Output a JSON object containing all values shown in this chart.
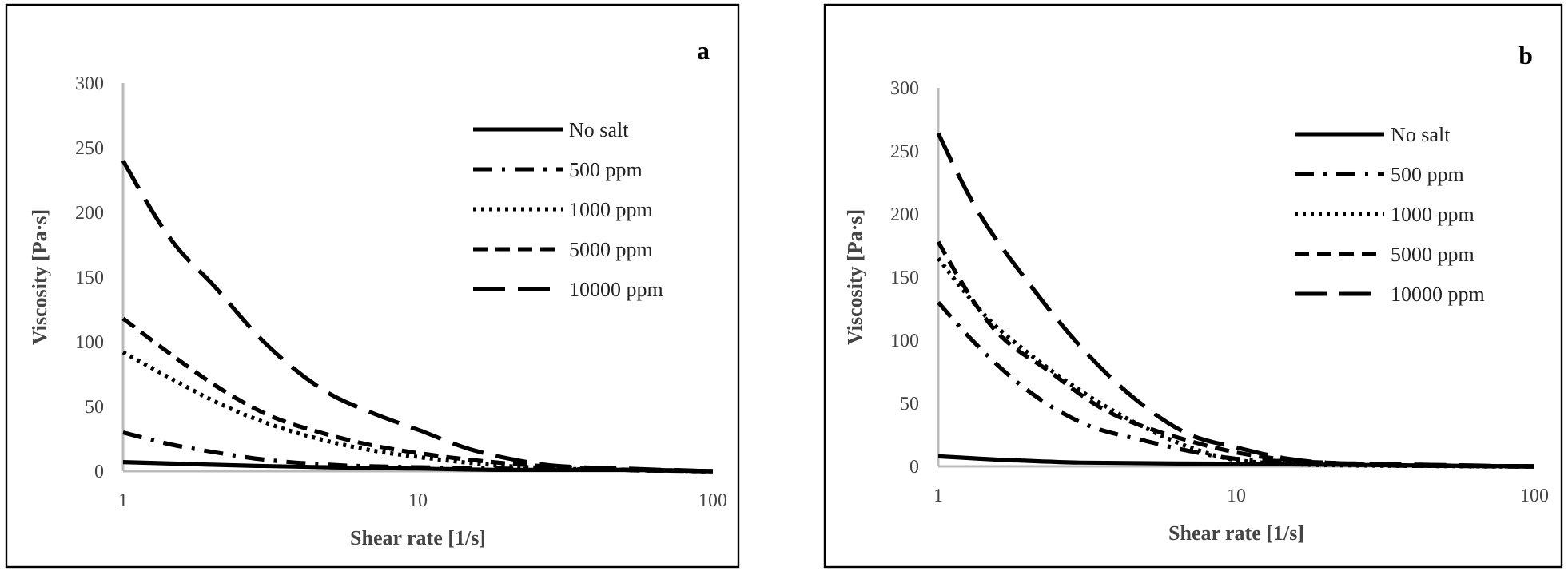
{
  "chart_data": [
    {
      "type": "line",
      "title": "a",
      "xlabel": "Shear rate [1/s]",
      "ylabel": "Viscosity [Pa·s]",
      "log": "x",
      "xlim": [
        1,
        100
      ],
      "xticks": [
        1,
        10,
        100
      ],
      "ylim": [
        0,
        300
      ],
      "yticks": [
        0,
        50,
        100,
        150,
        200,
        250,
        300
      ],
      "legend": "top right",
      "series": [
        {
          "name": "No salt",
          "color": "#000000",
          "line_style": "solid",
          "x": [
            1,
            2,
            3,
            5,
            10,
            20,
            50,
            100
          ],
          "values": [
            7,
            5,
            4,
            3,
            2,
            1,
            1,
            0
          ]
        },
        {
          "name": "500 ppm",
          "color": "#000000",
          "line_style": "dashdot",
          "x": [
            1,
            1.5,
            2,
            3,
            5,
            10,
            20,
            50,
            100
          ],
          "values": [
            30,
            20,
            15,
            9,
            5,
            3,
            2,
            1,
            0
          ]
        },
        {
          "name": "1000 ppm",
          "color": "#000000",
          "line_style": "dotted",
          "x": [
            1,
            1.5,
            2,
            3,
            5,
            7,
            10,
            20,
            30,
            50,
            100
          ],
          "values": [
            92,
            70,
            55,
            38,
            23,
            16,
            11,
            4,
            2,
            1,
            0
          ]
        },
        {
          "name": "5000 ppm",
          "color": "#000000",
          "line_style": "dashed",
          "x": [
            1,
            1.5,
            2,
            3,
            5,
            7,
            10,
            20,
            30,
            50,
            100
          ],
          "values": [
            118,
            88,
            68,
            45,
            28,
            20,
            14,
            6,
            3,
            1,
            0
          ]
        },
        {
          "name": "10000 ppm",
          "color": "#000000",
          "line_style": "longdash",
          "x": [
            1,
            1.5,
            2,
            3,
            5,
            7,
            10,
            15,
            20,
            30,
            50,
            100
          ],
          "values": [
            240,
            175,
            145,
            100,
            60,
            45,
            32,
            17,
            10,
            4,
            2,
            0
          ]
        }
      ]
    },
    {
      "type": "line",
      "title": "b",
      "xlabel": "Shear rate [1/s]",
      "ylabel": "Viscosity [Pa·s]",
      "log": "x",
      "xlim": [
        1,
        100
      ],
      "xticks": [
        1,
        10,
        100
      ],
      "ylim": [
        0,
        300
      ],
      "yticks": [
        0,
        50,
        100,
        150,
        200,
        250,
        300
      ],
      "legend": "top right",
      "series": [
        {
          "name": "No salt",
          "color": "#000000",
          "line_style": "solid",
          "x": [
            1,
            3,
            10,
            100
          ],
          "values": [
            8,
            3,
            2,
            0
          ]
        },
        {
          "name": "500 ppm",
          "color": "#000000",
          "line_style": "dashdot",
          "x": [
            1,
            1.3,
            2,
            3,
            5,
            7,
            10,
            20,
            30,
            100
          ],
          "values": [
            130,
            100,
            60,
            35,
            20,
            12,
            6,
            3,
            1,
            0
          ]
        },
        {
          "name": "1000 ppm",
          "color": "#000000",
          "line_style": "dotted",
          "x": [
            1,
            1.5,
            2,
            3,
            5,
            7,
            10,
            15,
            20,
            100
          ],
          "values": [
            165,
            115,
            90,
            60,
            30,
            15,
            5,
            2,
            1,
            0
          ]
        },
        {
          "name": "5000 ppm",
          "color": "#000000",
          "line_style": "dashed",
          "x": [
            1,
            1.5,
            2.4,
            3.6,
            5.4,
            7,
            10,
            15,
            20,
            30,
            100
          ],
          "values": [
            178,
            112,
            74,
            45,
            28,
            20,
            11,
            5,
            2,
            1,
            0
          ]
        },
        {
          "name": "10000 ppm",
          "color": "#000000",
          "line_style": "longdash",
          "x": [
            1,
            1.3,
            2,
            3,
            4.6,
            7,
            10,
            15,
            20,
            30,
            50,
            100
          ],
          "values": [
            264,
            210,
            146,
            95,
            53,
            25,
            15,
            6,
            3,
            2,
            1,
            0
          ]
        }
      ]
    }
  ]
}
